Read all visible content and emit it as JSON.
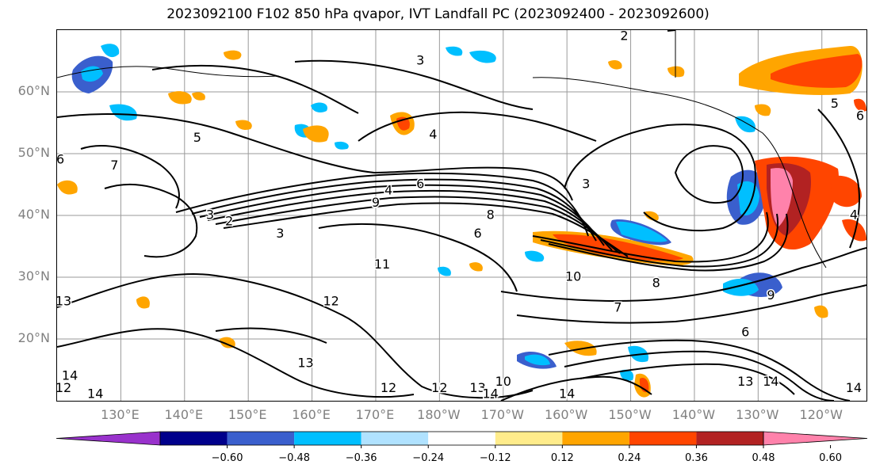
{
  "title": "2023092100 F102 850 hPa qvapor, IVT Landfall PC (2023092400 - 2023092600)",
  "lat_labels": [
    {
      "text": "60°N",
      "lat": 60
    },
    {
      "text": "50°N",
      "lat": 50
    },
    {
      "text": "40°N",
      "lat": 40
    },
    {
      "text": "30°N",
      "lat": 30
    },
    {
      "text": "20°N",
      "lat": 20
    }
  ],
  "lon_labels": [
    {
      "text": "130°E",
      "lon": 130
    },
    {
      "text": "140°E",
      "lon": 140
    },
    {
      "text": "150°E",
      "lon": 150
    },
    {
      "text": "160°E",
      "lon": 160
    },
    {
      "text": "170°E",
      "lon": 170
    },
    {
      "text": "180°W",
      "lon": 180
    },
    {
      "text": "170°W",
      "lon": 190
    },
    {
      "text": "160°W",
      "lon": 200
    },
    {
      "text": "150°W",
      "lon": 210
    },
    {
      "text": "140°W",
      "lon": 220
    },
    {
      "text": "130°W",
      "lon": 230
    },
    {
      "text": "120°W",
      "lon": 240
    }
  ],
  "map_extent": {
    "lon_min": 120,
    "lon_max": 247,
    "lat_min": 10,
    "lat_max": 70
  },
  "contour_labels": [
    {
      "text": "3",
      "lon": 177,
      "lat": 65
    },
    {
      "text": "2",
      "lon": 209,
      "lat": 69
    },
    {
      "text": "5",
      "lon": 142,
      "lat": 52.5
    },
    {
      "text": "6",
      "lon": 120.5,
      "lat": 49
    },
    {
      "text": "7",
      "lon": 129,
      "lat": 48
    },
    {
      "text": "4",
      "lon": 179,
      "lat": 53
    },
    {
      "text": "2",
      "lon": 147,
      "lat": 39
    },
    {
      "text": "3",
      "lon": 144,
      "lat": 40
    },
    {
      "text": "3",
      "lon": 155,
      "lat": 37
    },
    {
      "text": "4",
      "lon": 172,
      "lat": 44
    },
    {
      "text": "6",
      "lon": 177,
      "lat": 45
    },
    {
      "text": "9",
      "lon": 170,
      "lat": 42
    },
    {
      "text": "8",
      "lon": 188,
      "lat": 40
    },
    {
      "text": "6",
      "lon": 186,
      "lat": 37
    },
    {
      "text": "3",
      "lon": 203,
      "lat": 45
    },
    {
      "text": "4",
      "lon": 245,
      "lat": 40
    },
    {
      "text": "5",
      "lon": 242,
      "lat": 58
    },
    {
      "text": "6",
      "lon": 246,
      "lat": 56
    },
    {
      "text": "11",
      "lon": 171,
      "lat": 32
    },
    {
      "text": "10",
      "lon": 201,
      "lat": 30
    },
    {
      "text": "13",
      "lon": 121,
      "lat": 26
    },
    {
      "text": "12",
      "lon": 163,
      "lat": 26
    },
    {
      "text": "13",
      "lon": 159,
      "lat": 16
    },
    {
      "text": "12",
      "lon": 172,
      "lat": 12
    },
    {
      "text": "12",
      "lon": 180,
      "lat": 12
    },
    {
      "text": "13",
      "lon": 186,
      "lat": 12
    },
    {
      "text": "14",
      "lon": 188,
      "lat": 11
    },
    {
      "text": "10",
      "lon": 190,
      "lat": 13
    },
    {
      "text": "14",
      "lon": 200,
      "lat": 11
    },
    {
      "text": "14",
      "lon": 126,
      "lat": 11
    },
    {
      "text": "14",
      "lon": 122,
      "lat": 14
    },
    {
      "text": "12",
      "lon": 121,
      "lat": 12
    },
    {
      "text": "7",
      "lon": 208,
      "lat": 25
    },
    {
      "text": "8",
      "lon": 214,
      "lat": 29
    },
    {
      "text": "9",
      "lon": 232,
      "lat": 27
    },
    {
      "text": "6",
      "lon": 228,
      "lat": 21
    },
    {
      "text": "13",
      "lon": 228,
      "lat": 13
    },
    {
      "text": "14",
      "lon": 232,
      "lat": 13
    },
    {
      "text": "14",
      "lon": 245,
      "lat": 12
    }
  ],
  "colorbar": {
    "boundaries": [
      -0.72,
      -0.6,
      -0.48,
      -0.36,
      -0.24,
      -0.12,
      0.12,
      0.24,
      0.36,
      0.48,
      0.6,
      0.72
    ],
    "tick_labels": [
      "−0.60",
      "−0.48",
      "−0.36",
      "−0.24",
      "−0.12",
      "0.12",
      "0.24",
      "0.36",
      "0.48",
      "0.60"
    ],
    "colors": [
      "#9932cc",
      "#00008b",
      "#3a5fcd",
      "#00bfff",
      "#b0e2ff",
      "#ffffff",
      "#ffec8b",
      "#ffa500",
      "#ff4500",
      "#b22222",
      "#ff82ab"
    ]
  }
}
